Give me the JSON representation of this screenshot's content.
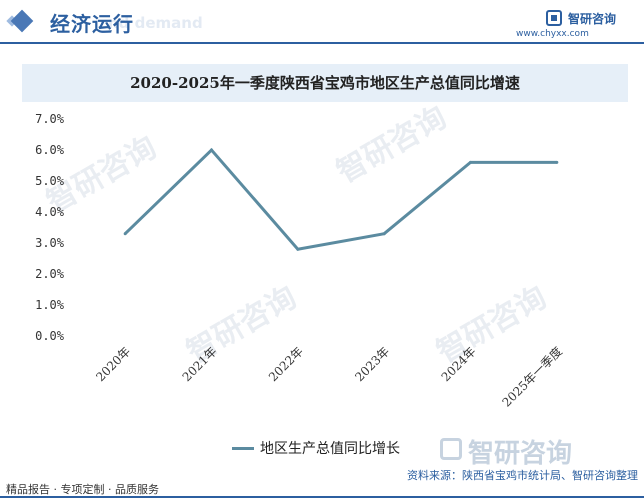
{
  "header": {
    "title": "经济运行",
    "subtitle_ghost": "nd demand",
    "logo_name": "智研咨询",
    "logo_url": "www.chyxx.com",
    "accent_color": "#2c5fa0"
  },
  "watermark_text": "智研咨询",
  "chart_data": {
    "type": "line",
    "title": "2020-2025年一季度陕西省宝鸡市地区生产总值同比增速",
    "categories": [
      "2020年",
      "2021年",
      "2022年",
      "2023年",
      "2024年",
      "2025年一季度"
    ],
    "series": [
      {
        "name": "地区生产总值同比增长",
        "values": [
          3.3,
          6.0,
          2.8,
          3.3,
          5.6,
          5.6
        ],
        "color": "#5b8ba0"
      }
    ],
    "y_ticks": [
      "7.0%",
      "6.0%",
      "5.0%",
      "4.0%",
      "3.0%",
      "2.0%",
      "1.0%",
      "0.0%"
    ],
    "ylim": [
      0,
      7
    ],
    "xlabel": "",
    "ylabel": "",
    "grid": false,
    "legend_position": "bottom"
  },
  "footer": {
    "left": "精品报告 · 专项定制 · 品质服务",
    "right": "资料来源：陕西省宝鸡市统计局、智研咨询整理",
    "brand": "智研咨询"
  }
}
